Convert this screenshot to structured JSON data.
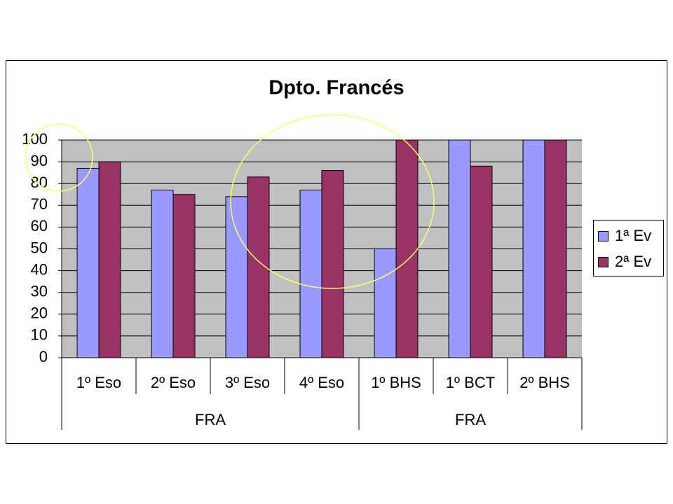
{
  "chart_data": {
    "type": "bar",
    "title": "Dpto. Francés",
    "categories": [
      "1º Eso",
      "2º Eso",
      "3º Eso",
      "4º Eso",
      "1º BHS",
      "1º BCT",
      "2º BHS"
    ],
    "groups": [
      {
        "label": "FRA",
        "count": 4
      },
      {
        "label": "FRA",
        "count": 3
      }
    ],
    "series": [
      {
        "name": "1ª Ev",
        "color": "#9999ff",
        "values": [
          87,
          77,
          74,
          77,
          50,
          100,
          100
        ]
      },
      {
        "name": "2ª Ev",
        "color": "#993366",
        "values": [
          90,
          75,
          83,
          86,
          100,
          88,
          100
        ]
      }
    ],
    "ylim": [
      0,
      100
    ],
    "yticks": [
      0,
      10,
      20,
      30,
      40,
      50,
      60,
      70,
      80,
      90,
      100
    ],
    "grid": true,
    "legend": "right"
  }
}
